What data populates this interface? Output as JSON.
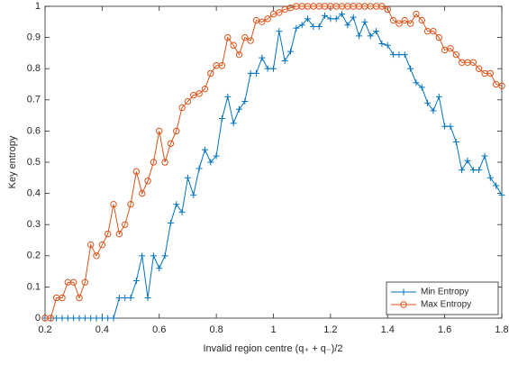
{
  "chart_data": {
    "type": "line",
    "xlabel": "Invalid region centre (q₊ + q₋)/2",
    "ylabel": "Key entropy",
    "x": [
      0.2,
      0.22,
      0.24,
      0.26,
      0.28,
      0.3,
      0.32,
      0.34,
      0.36,
      0.38,
      0.4,
      0.42,
      0.44,
      0.46,
      0.48,
      0.5,
      0.52,
      0.54,
      0.56,
      0.58,
      0.6,
      0.62,
      0.64,
      0.66,
      0.68,
      0.7,
      0.72,
      0.74,
      0.76,
      0.78,
      0.8,
      0.82,
      0.84,
      0.86,
      0.88,
      0.9,
      0.92,
      0.94,
      0.96,
      0.98,
      1.0,
      1.02,
      1.04,
      1.06,
      1.08,
      1.1,
      1.12,
      1.14,
      1.16,
      1.18,
      1.2,
      1.22,
      1.24,
      1.26,
      1.28,
      1.3,
      1.32,
      1.34,
      1.36,
      1.38,
      1.4,
      1.42,
      1.44,
      1.46,
      1.48,
      1.5,
      1.52,
      1.54,
      1.56,
      1.58,
      1.6,
      1.62,
      1.64,
      1.66,
      1.68,
      1.7,
      1.72,
      1.74,
      1.76,
      1.78,
      1.8
    ],
    "series": [
      {
        "name": "Min Entropy",
        "color": "#0072bd",
        "marker": "plus",
        "values": [
          0,
          0,
          0,
          0,
          0,
          0,
          0,
          0,
          0,
          0,
          0,
          0,
          0,
          0.065,
          0.065,
          0.065,
          0.12,
          0.2,
          0.065,
          0.2,
          0.16,
          0.2,
          0.305,
          0.365,
          0.34,
          0.45,
          0.395,
          0.48,
          0.54,
          0.5,
          0.52,
          0.64,
          0.71,
          0.625,
          0.67,
          0.695,
          0.785,
          0.785,
          0.835,
          0.8,
          0.8,
          0.92,
          0.825,
          0.855,
          0.93,
          0.94,
          0.96,
          0.935,
          0.935,
          0.97,
          0.96,
          0.96,
          0.975,
          0.94,
          0.965,
          0.905,
          0.95,
          0.905,
          0.92,
          0.88,
          0.875,
          0.845,
          0.845,
          0.845,
          0.8,
          0.755,
          0.74,
          0.69,
          0.665,
          0.71,
          0.615,
          0.615,
          0.565,
          0.475,
          0.505,
          0.475,
          0.475,
          0.52,
          0.45,
          0.425,
          0.395
        ]
      },
      {
        "name": "Max Entropy",
        "color": "#d95319",
        "marker": "circle",
        "values": [
          0,
          0,
          0.065,
          0.065,
          0.115,
          0.115,
          0.065,
          0.115,
          0.235,
          0.2,
          0.235,
          0.27,
          0.365,
          0.27,
          0.3,
          0.365,
          0.47,
          0.4,
          0.44,
          0.5,
          0.6,
          0.5,
          0.56,
          0.6,
          0.675,
          0.695,
          0.715,
          0.72,
          0.735,
          0.785,
          0.81,
          0.81,
          0.9,
          0.875,
          0.845,
          0.9,
          0.89,
          0.955,
          0.95,
          0.96,
          0.975,
          0.98,
          0.99,
          0.995,
          1,
          1,
          1,
          1,
          1,
          1,
          1,
          1,
          1,
          1,
          1,
          1,
          1,
          1,
          1,
          1,
          0.99,
          0.955,
          0.945,
          0.955,
          0.945,
          0.975,
          0.955,
          0.92,
          0.92,
          0.9,
          0.86,
          0.865,
          0.845,
          0.82,
          0.82,
          0.82,
          0.8,
          0.785,
          0.785,
          0.75,
          0.745
        ]
      }
    ],
    "xlim": [
      0.2,
      1.8
    ],
    "xticks": [
      0.2,
      0.4,
      0.6,
      0.8,
      1,
      1.2,
      1.4,
      1.6,
      1.8
    ],
    "ylim": [
      0,
      1
    ],
    "yticks": [
      0,
      0.1,
      0.2,
      0.3,
      0.4,
      0.5,
      0.6,
      0.7,
      0.8,
      0.9,
      1
    ],
    "grid": false,
    "legend": "lower right"
  }
}
